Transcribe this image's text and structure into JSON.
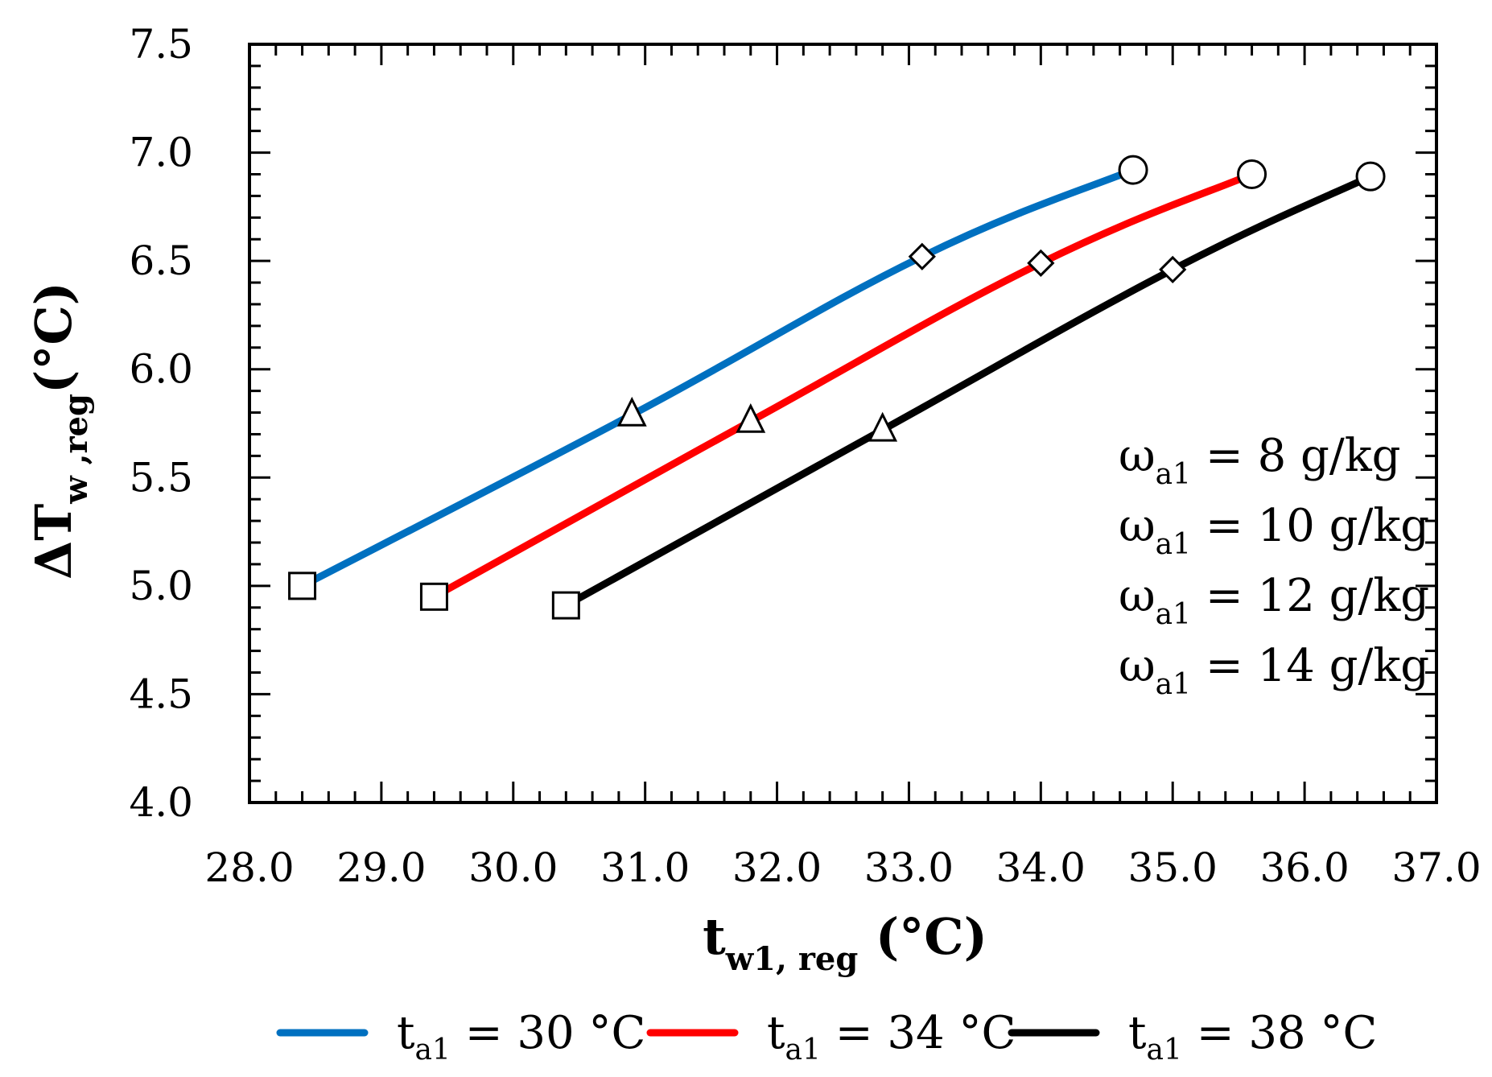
{
  "chart_data": {
    "type": "line",
    "xlabel": {
      "main": "t",
      "sub": "w1, reg",
      "unit": " (°C)"
    },
    "ylabel": {
      "main": "ΔT",
      "sub": "w ,reg",
      "unit": "(°C)"
    },
    "xlim": [
      28.0,
      37.0
    ],
    "ylim": [
      4.0,
      7.5
    ],
    "x_ticks": [
      28.0,
      29.0,
      30.0,
      31.0,
      32.0,
      33.0,
      34.0,
      35.0,
      36.0,
      37.0
    ],
    "x_tick_labels": [
      "28.0",
      "29.0",
      "30.0",
      "31.0",
      "32.0",
      "33.0",
      "34.0",
      "35.0",
      "36.0",
      "37.0"
    ],
    "y_ticks": [
      4.0,
      4.5,
      5.0,
      5.5,
      6.0,
      6.5,
      7.0,
      7.5
    ],
    "y_tick_labels": [
      "4.0",
      "4.5",
      "5.0",
      "5.5",
      "6.0",
      "6.5",
      "7.0",
      "7.5"
    ],
    "series": [
      {
        "name": "t_a1 = 30 °C",
        "legend": {
          "main": "t",
          "sub": "a1",
          "rest": " = 30 °C"
        },
        "color": "#0070C0",
        "x": [
          28.4,
          30.9,
          33.1,
          34.7
        ],
        "y": [
          5.0,
          5.79,
          6.52,
          6.92
        ]
      },
      {
        "name": "t_a1 = 34 °C",
        "legend": {
          "main": "t",
          "sub": "a1",
          "rest": " = 34 °C"
        },
        "color": "#FF0000",
        "x": [
          29.4,
          31.8,
          34.0,
          35.6
        ],
        "y": [
          4.95,
          5.76,
          6.49,
          6.9
        ]
      },
      {
        "name": "t_a1 = 38 °C",
        "legend": {
          "main": "t",
          "sub": "a1",
          "rest": " = 38 °C"
        },
        "color": "#000000",
        "x": [
          30.4,
          32.8,
          35.0,
          36.5
        ],
        "y": [
          4.91,
          5.72,
          6.46,
          6.89
        ]
      }
    ],
    "marker_symbols": [
      "square",
      "triangle",
      "diamond",
      "circle"
    ],
    "annotations": [
      {
        "main": "ω",
        "sub": "a1",
        "rest": " = 8 g/kg"
      },
      {
        "main": "ω",
        "sub": "a1",
        "rest": " = 10 g/kg"
      },
      {
        "main": "ω",
        "sub": "a1",
        "rest": " = 12 g/kg"
      },
      {
        "main": "ω",
        "sub": "a1",
        "rest": " = 14 g/kg"
      }
    ]
  }
}
